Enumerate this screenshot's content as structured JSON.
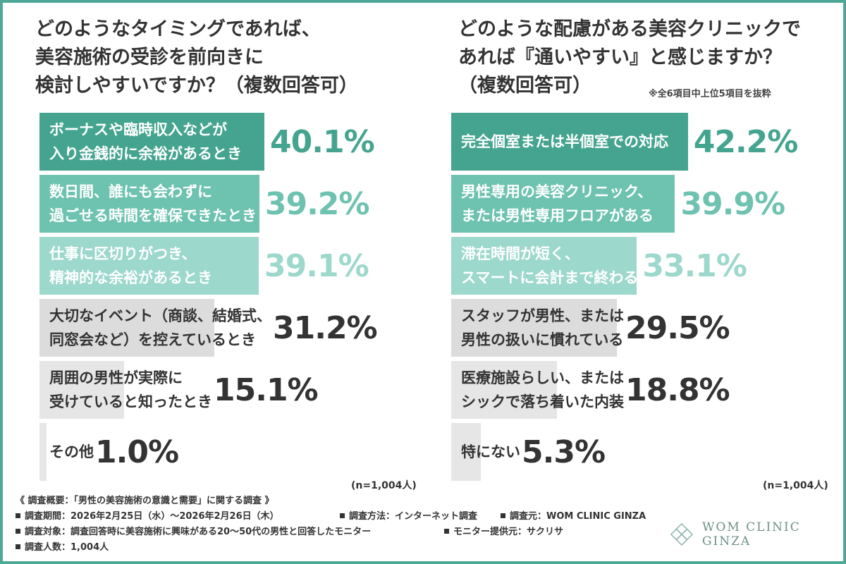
{
  "colors": {
    "frame": "#4fa797",
    "dark_green": "#45a48f",
    "mid_green": "#6ec2b0",
    "light_green": "#9dd8cc",
    "gray": "#dcdcdc",
    "light_gray": "#e6e6e6"
  },
  "left": {
    "title": "どのようなタイミングであれば、\n美容施術の受診を前向きに\n検討しやすいですか？（複数回答可）",
    "n_label": "(n=1,004人)"
  },
  "right": {
    "title": "どのような配慮がある美容クリニックで\nあれば『通いやすい』と感じますか？\n（複数回答可）",
    "note": "※全6項目中上位5項目を抜粋",
    "n_label": "(n=1,004人)"
  },
  "chart_data": [
    {
      "type": "bar",
      "title": "どのようなタイミングであれば、美容施術の受診を前向きに検討しやすいですか？（複数回答可）",
      "categories": [
        "ボーナスや臨時収入などが\n入り金銭的に余裕があるとき",
        "数日間、誰にも会わずに\n過ごせる時間を確保できたとき",
        "仕事に区切りがつき、\n精神的な余裕があるとき",
        "大切なイベント（商談、結婚式、\n同窓会など）を控えているとき",
        "周囲の男性が実際に\n受けていると知ったとき",
        "その他"
      ],
      "values": [
        40.1,
        39.2,
        39.1,
        31.2,
        15.1,
        1.0
      ],
      "value_labels": [
        "40.1%",
        "39.2%",
        "39.1%",
        "31.2%",
        "15.1%",
        "1.0%"
      ],
      "bar_colors": [
        "#45a48f",
        "#6ec2b0",
        "#9dd8cc",
        "#dcdcdc",
        "#e6e6e6",
        "#e6e6e6"
      ],
      "text_colors": [
        "#ffffff",
        "#ffffff",
        "#ffffff",
        "#333333",
        "#333333",
        "#333333"
      ],
      "value_colors": [
        "#45a48f",
        "#6ec2b0",
        "#9dd8cc",
        "#333333",
        "#333333",
        "#333333"
      ],
      "xlim": [
        0,
        45
      ],
      "n": "(n=1,004人)"
    },
    {
      "type": "bar",
      "title": "どのような配慮がある美容クリニックであれば『通いやすい』と感じますか？（複数回答可）",
      "categories": [
        "完全個室または半個室での対応",
        "男性専用の美容クリニック、\nまたは男性専用フロアがある",
        "滞在時間が短く、\nスマートに会計まで終わる",
        "スタッフが男性、または\n男性の扱いに慣れている",
        "医療施設らしい、または\nシックで落ち着いた内装",
        "特にない"
      ],
      "values": [
        42.2,
        39.9,
        33.1,
        29.5,
        18.8,
        5.3
      ],
      "value_labels": [
        "42.2%",
        "39.9%",
        "33.1%",
        "29.5%",
        "18.8%",
        "5.3%"
      ],
      "bar_colors": [
        "#45a48f",
        "#6ec2b0",
        "#9dd8cc",
        "#dcdcdc",
        "#e6e6e6",
        "#e6e6e6"
      ],
      "text_colors": [
        "#ffffff",
        "#ffffff",
        "#ffffff",
        "#333333",
        "#333333",
        "#333333"
      ],
      "value_colors": [
        "#45a48f",
        "#6ec2b0",
        "#9dd8cc",
        "#333333",
        "#333333",
        "#333333"
      ],
      "xlim": [
        0,
        45
      ],
      "n": "(n=1,004人)"
    }
  ],
  "footer": {
    "heading": "《 調査概要：「男性の美容施術の意識と需要」に関する調査 》",
    "period": "調査期間：2026年2月25日（水）～2026年2月26日（木）",
    "method": "調査方法：インターネット調査",
    "source": "調査元：WOM CLINIC GINZA",
    "target": "調査対象：調査回答時に美容施術に興味がある20〜50代の男性と回答したモニター",
    "provider": "モニター提供元：サクリサ",
    "count": "調査人数：1,004人"
  },
  "logo": {
    "text": "WOM CLINIC GINZA",
    "icon": "diamond-pattern-icon"
  }
}
